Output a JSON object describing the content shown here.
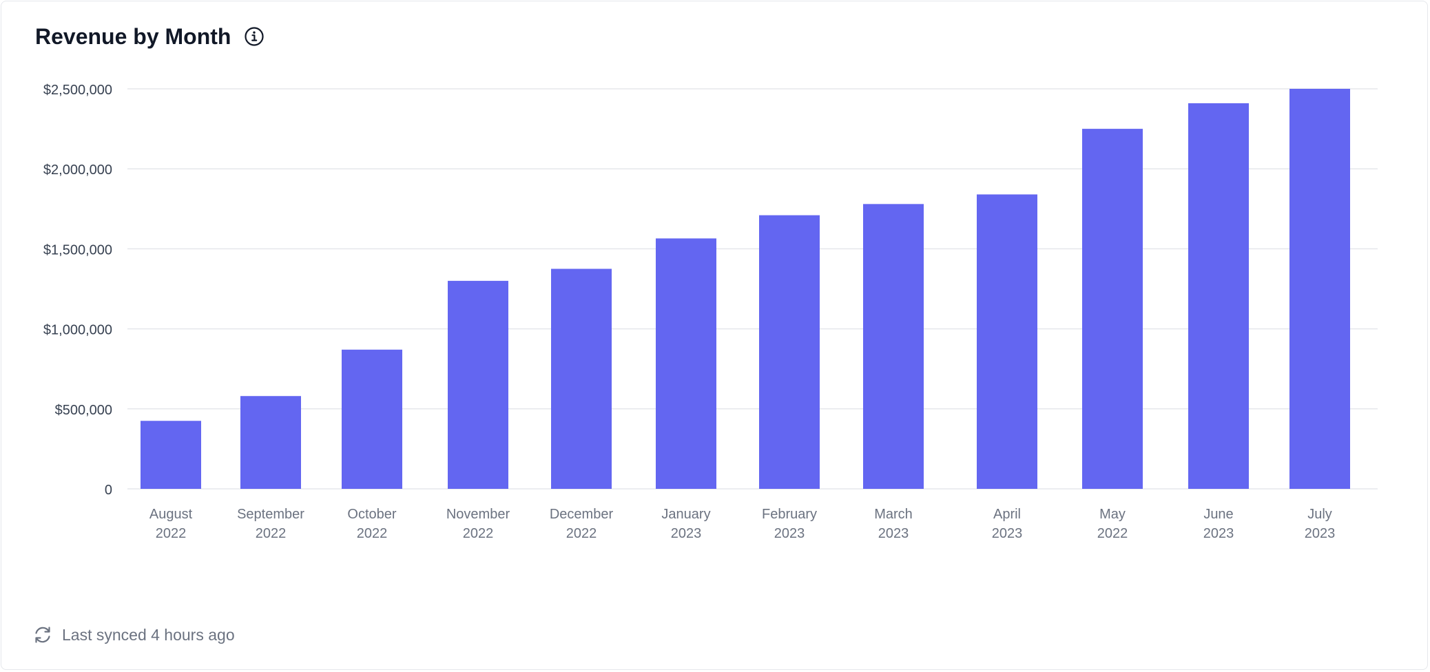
{
  "header": {
    "title": "Revenue by Month",
    "info_icon": "info-circle-icon"
  },
  "footer": {
    "sync_icon": "refresh-icon",
    "sync_text": "Last synced 4 hours ago"
  },
  "colors": {
    "bar": "#6366f1",
    "grid": "#e5e7eb",
    "tick_text": "#374151",
    "category_text": "#6b7280"
  },
  "chart_data": {
    "type": "bar",
    "title": "Revenue by Month",
    "xlabel": "",
    "ylabel": "",
    "ylim": [
      0,
      2500000
    ],
    "grid": true,
    "y_ticks": [
      {
        "value": 0,
        "label": "0"
      },
      {
        "value": 500000,
        "label": "$500,000"
      },
      {
        "value": 1000000,
        "label": "$1,000,000"
      },
      {
        "value": 1500000,
        "label": "$1,500,000"
      },
      {
        "value": 2000000,
        "label": "$2,000,000"
      },
      {
        "value": 2500000,
        "label": "$2,500,000"
      }
    ],
    "categories": [
      [
        "August",
        "2022"
      ],
      [
        "September",
        "2022"
      ],
      [
        "October",
        "2022"
      ],
      [
        "November",
        "2022"
      ],
      [
        "December",
        "2022"
      ],
      [
        "January",
        "2023"
      ],
      [
        "February",
        "2023"
      ],
      [
        "March",
        "2023"
      ],
      [
        "April",
        "2023"
      ],
      [
        "May",
        "2022"
      ],
      [
        "June",
        "2023"
      ],
      [
        "July",
        "2023"
      ]
    ],
    "values": [
      425000,
      580000,
      870000,
      1300000,
      1375000,
      1565000,
      1710000,
      1780000,
      1840000,
      2250000,
      2410000,
      2500000
    ]
  }
}
